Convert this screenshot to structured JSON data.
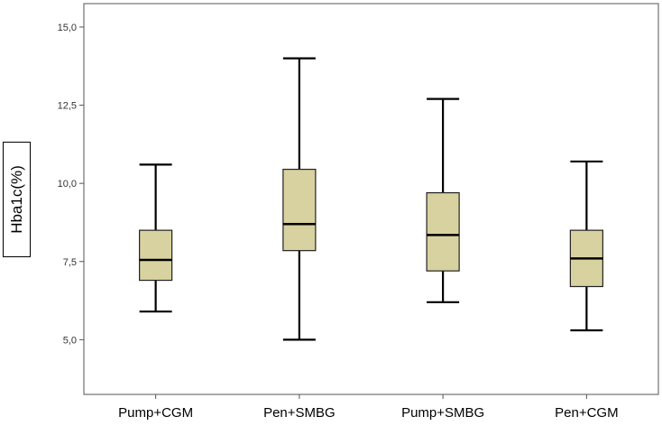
{
  "chart_data": {
    "type": "boxplot",
    "title": "",
    "xlabel": "",
    "ylabel": "Hba1c(%)",
    "ylim": [
      3.25,
      15.75
    ],
    "yticks": [
      {
        "value": 5.0,
        "label": "5,0"
      },
      {
        "value": 7.5,
        "label": "7,5"
      },
      {
        "value": 10.0,
        "label": "10,0"
      },
      {
        "value": 12.5,
        "label": "12,5"
      },
      {
        "value": 15.0,
        "label": "15,0"
      }
    ],
    "grid": false,
    "box_color": "#d8d2a0",
    "categories": [
      "Pump+CGM",
      "Pen+SMBG",
      "Pump+SMBG",
      "Pen+CGM"
    ],
    "boxes": [
      {
        "name": "Pump+CGM",
        "min": 5.9,
        "q1": 6.9,
        "median": 7.55,
        "q3": 8.5,
        "max": 10.6
      },
      {
        "name": "Pen+SMBG",
        "min": 5.0,
        "q1": 7.85,
        "median": 8.7,
        "q3": 10.45,
        "max": 14.0
      },
      {
        "name": "Pump+SMBG",
        "min": 6.2,
        "q1": 7.2,
        "median": 8.35,
        "q3": 9.7,
        "max": 12.7
      },
      {
        "name": "Pen+CGM",
        "min": 5.3,
        "q1": 6.7,
        "median": 7.6,
        "q3": 8.5,
        "max": 10.7
      }
    ]
  }
}
